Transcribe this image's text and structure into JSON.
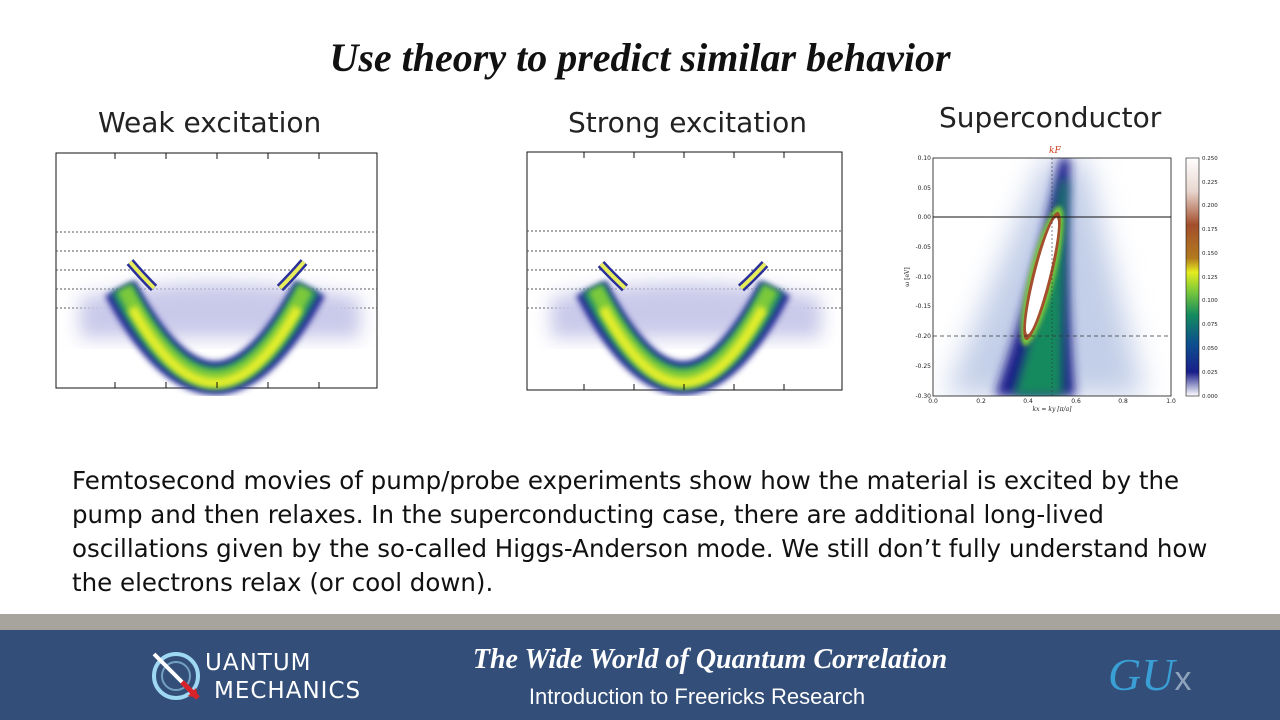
{
  "slide": {
    "title": "Use theory to predict similar behavior"
  },
  "panels": {
    "weak": {
      "label": "Weak excitation"
    },
    "strong": {
      "label": "Strong excitation"
    },
    "superconductor": {
      "label": "Superconductor",
      "kf_label": "kF",
      "y_axis_label": "ω [eV]",
      "x_axis_label": "kx = ky [π/a]",
      "y_ticks": [
        "0.10",
        "0.05",
        "0.00",
        "-0.05",
        "-0.10",
        "-0.15",
        "-0.20",
        "-0.25",
        "-0.30"
      ],
      "x_ticks": [
        "0.0",
        "0.2",
        "0.4",
        "0.6",
        "0.8",
        "1.0"
      ],
      "colorbar_ticks": [
        "0.250",
        "0.225",
        "0.200",
        "0.175",
        "0.150",
        "0.125",
        "0.100",
        "0.075",
        "0.050",
        "0.025",
        "0.000"
      ]
    }
  },
  "caption": "Femtosecond movies of pump/probe experiments show how the material is excited by the pump and then relaxes. In the superconducting case, there are additional long-lived oscillations given by the so-called Higgs-Anderson mode. We still don’t fully understand how the electrons relax (or cool down).",
  "footer": {
    "logo_line1": "UANTUM",
    "logo_line2": "MECHANICS",
    "course_title": "The Wide World of Quantum Correlation",
    "course_subtitle": "Introduction to Freericks Research",
    "brand_main": "GU",
    "brand_x": "x",
    "colors": {
      "footer_bg": "#324e79",
      "bar": "#a7a49d",
      "brand": "#3a9fd4"
    }
  }
}
